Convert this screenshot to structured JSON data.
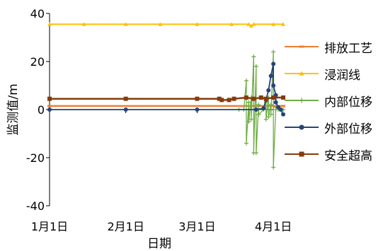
{
  "chart_data": {
    "type": "line",
    "title": "",
    "xlabel": "日期",
    "ylabel": "监测值/m",
    "ylim": [
      -40,
      40
    ],
    "yticks": [
      -40,
      -20,
      0,
      20,
      40
    ],
    "x_range": [
      "2020-01-01",
      "2020-04-05"
    ],
    "xticks": [
      {
        "date": "2020-01-01",
        "label": "1月1日"
      },
      {
        "date": "2020-02-01",
        "label": "2月1日"
      },
      {
        "date": "2020-03-01",
        "label": "3月1日"
      },
      {
        "date": "2020-04-01",
        "label": "4月1日"
      }
    ],
    "legend_position": "right",
    "grid": false,
    "series": [
      {
        "name": "排放工艺",
        "color": "#ED7D31",
        "marker": "dash",
        "points": [
          [
            "2020-01-01",
            1.5
          ],
          [
            "2020-04-05",
            1.5
          ]
        ]
      },
      {
        "name": "浸润线",
        "color": "#FFC000",
        "marker": "triangle",
        "points": [
          [
            "2020-01-01",
            35.5
          ],
          [
            "2020-01-15",
            35.5
          ],
          [
            "2020-02-01",
            35.5
          ],
          [
            "2020-02-15",
            35.5
          ],
          [
            "2020-03-01",
            35.5
          ],
          [
            "2020-03-15",
            35.5
          ],
          [
            "2020-03-22",
            35.5
          ],
          [
            "2020-03-23",
            34.8
          ],
          [
            "2020-03-24",
            35.5
          ],
          [
            "2020-04-01",
            35.5
          ],
          [
            "2020-04-05",
            35.5
          ]
        ]
      },
      {
        "name": "内部位移",
        "color": "#70AD47",
        "marker": "plus",
        "points": [
          [
            "2020-01-01",
            0
          ],
          [
            "2020-02-01",
            0
          ],
          [
            "2020-03-01",
            0
          ],
          [
            "2020-03-18",
            0
          ],
          [
            "2020-03-20",
            0
          ],
          [
            "2020-03-21",
            12
          ],
          [
            "2020-03-21",
            -14
          ],
          [
            "2020-03-22",
            3
          ],
          [
            "2020-03-22",
            -5
          ],
          [
            "2020-03-23",
            5
          ],
          [
            "2020-03-23",
            -4
          ],
          [
            "2020-03-24",
            22
          ],
          [
            "2020-03-24",
            -18
          ],
          [
            "2020-03-25",
            18
          ],
          [
            "2020-03-25",
            -18
          ],
          [
            "2020-03-26",
            2
          ],
          [
            "2020-03-26",
            -2
          ],
          [
            "2020-03-28",
            0
          ],
          [
            "2020-03-29",
            3
          ],
          [
            "2020-03-29",
            -4
          ],
          [
            "2020-03-30",
            5
          ],
          [
            "2020-03-30",
            -3
          ],
          [
            "2020-03-31",
            2
          ],
          [
            "2020-03-31",
            -2
          ],
          [
            "2020-04-01",
            24
          ],
          [
            "2020-04-01",
            -24
          ],
          [
            "2020-04-02",
            1
          ],
          [
            "2020-04-02",
            0
          ],
          [
            "2020-04-03",
            0
          ],
          [
            "2020-04-05",
            0
          ]
        ]
      },
      {
        "name": "外部位移",
        "color": "#264478",
        "marker": "circle",
        "points": [
          [
            "2020-01-01",
            0
          ],
          [
            "2020-02-01",
            0
          ],
          [
            "2020-03-01",
            0
          ],
          [
            "2020-03-25",
            0
          ],
          [
            "2020-03-28",
            0.5
          ],
          [
            "2020-03-29",
            4
          ],
          [
            "2020-03-30",
            8
          ],
          [
            "2020-03-31",
            14
          ],
          [
            "2020-04-01",
            19
          ],
          [
            "2020-04-01",
            10
          ],
          [
            "2020-04-02",
            6
          ],
          [
            "2020-04-02",
            3
          ],
          [
            "2020-04-03",
            1
          ],
          [
            "2020-04-04",
            0
          ],
          [
            "2020-04-05",
            -2
          ]
        ]
      },
      {
        "name": "安全超高",
        "color": "#843C0C",
        "marker": "square",
        "points": [
          [
            "2020-01-01",
            4.5
          ],
          [
            "2020-02-01",
            4.5
          ],
          [
            "2020-03-01",
            4.5
          ],
          [
            "2020-03-10",
            4.5
          ],
          [
            "2020-03-11",
            4
          ],
          [
            "2020-03-14",
            4
          ],
          [
            "2020-03-16",
            4.5
          ],
          [
            "2020-03-21",
            5
          ],
          [
            "2020-03-24",
            4.5
          ],
          [
            "2020-03-27",
            5
          ],
          [
            "2020-03-29",
            4.5
          ],
          [
            "2020-04-01",
            5
          ],
          [
            "2020-04-05",
            5
          ]
        ]
      }
    ]
  }
}
